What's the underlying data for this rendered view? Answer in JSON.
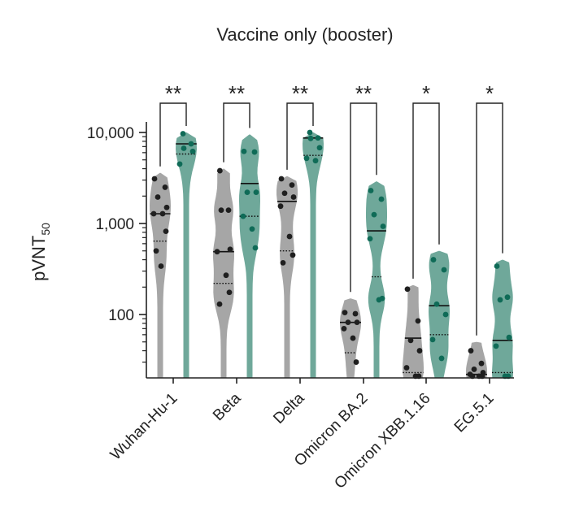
{
  "chart_data": {
    "type": "violin",
    "title": "Vaccine only (booster)",
    "ylabel": "pVNT",
    "ylabel_subscript": "50",
    "yscale": "log",
    "ylim": [
      20,
      10000
    ],
    "yticks": [
      {
        "value": 100,
        "label": "100"
      },
      {
        "value": 1000,
        "label": "1,000"
      },
      {
        "value": 10000,
        "label": "10,000"
      }
    ],
    "categories": [
      "Wuhan-Hu-1",
      "Beta",
      "Delta",
      "Omicron BA.2",
      "Omicron XBB.1.16",
      "EG.5.1"
    ],
    "series_colors": {
      "grey": "#a6a6a6",
      "teal": "#6fa89a"
    },
    "point_colors": {
      "grey": "#1f1f1f",
      "teal": "#0f6b57"
    },
    "significance": [
      "**",
      "**",
      "**",
      "**",
      "*",
      "*"
    ],
    "series": [
      {
        "color_key": "grey",
        "groups": [
          {
            "max": 3600,
            "median": 1280,
            "q": 640,
            "points": [
              3100,
              2500,
              1950,
              1500,
              1280,
              1280,
              820,
              500,
              340
            ]
          },
          {
            "max": 4000,
            "median": 490,
            "q": 220,
            "points": [
              3800,
              1400,
              1400,
              520,
              490,
              270,
              175,
              130
            ]
          },
          {
            "max": 3300,
            "median": 1750,
            "q": 500,
            "points": [
              3100,
              2650,
              2150,
              1950,
              1550,
              720,
              450,
              370
            ]
          },
          {
            "max": 150,
            "median": 82,
            "q": 38,
            "points": [
              105,
              102,
              82,
              82,
              70,
              55,
              30
            ]
          },
          {
            "max": 210,
            "median": 55,
            "q": 23,
            "points": [
              190,
              85,
              52,
              40,
              26,
              21,
              21
            ]
          },
          {
            "max": 50,
            "median": 22,
            "q": 22,
            "points": [
              40,
              29,
              25,
              23,
              22,
              21,
              21,
              21
            ]
          }
        ]
      },
      {
        "color_key": "teal",
        "groups": [
          {
            "max": 10000,
            "median": 7500,
            "q": 5800,
            "points": [
              9700,
              7500,
              6700,
              6200,
              4500
            ]
          },
          {
            "max": 9500,
            "median": 2750,
            "q": 1200,
            "points": [
              6200,
              6100,
              2200,
              2200,
              1200,
              870,
              540
            ]
          },
          {
            "max": 10000,
            "median": 8700,
            "q": 5600,
            "points": [
              10000,
              8700,
              8600,
              6800,
              5200,
              4900
            ]
          },
          {
            "max": 2900,
            "median": 830,
            "q": 260,
            "points": [
              2300,
              1850,
              1250,
              930,
              680,
              145,
              150
            ]
          },
          {
            "max": 500,
            "median": 125,
            "q": 60,
            "points": [
              400,
              310,
              130,
              100,
              53,
              33
            ]
          },
          {
            "max": 400,
            "median": 52,
            "q": 23,
            "points": [
              340,
              155,
              145,
              56,
              45,
              21,
              21
            ]
          }
        ]
      }
    ]
  }
}
